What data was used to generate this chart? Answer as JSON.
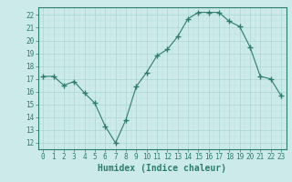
{
  "x": [
    0,
    1,
    2,
    3,
    4,
    5,
    6,
    7,
    8,
    9,
    10,
    11,
    12,
    13,
    14,
    15,
    16,
    17,
    18,
    19,
    20,
    21,
    22,
    23
  ],
  "y": [
    17.2,
    17.2,
    16.5,
    16.8,
    15.9,
    15.1,
    13.3,
    12.0,
    13.8,
    16.4,
    17.5,
    18.8,
    19.3,
    20.3,
    21.7,
    22.2,
    22.2,
    22.2,
    21.5,
    21.1,
    19.5,
    17.2,
    17.0,
    15.7
  ],
  "line_color": "#2d7d6e",
  "marker": "+",
  "marker_size": 4,
  "marker_linewidth": 1.0,
  "bg_color": "#cceaea",
  "grid_major_color": "#aad4d4",
  "grid_minor_color": "#bbdede",
  "tick_color": "#2d7d6e",
  "spine_color": "#2d7d6e",
  "xlabel": "Humidex (Indice chaleur)",
  "xlabel_fontsize": 7,
  "tick_fontsize": 5.5,
  "ylim": [
    11.5,
    22.6
  ],
  "xlim": [
    -0.5,
    23.5
  ],
  "yticks": [
    12,
    13,
    14,
    15,
    16,
    17,
    18,
    19,
    20,
    21,
    22
  ],
  "xticks": [
    0,
    1,
    2,
    3,
    4,
    5,
    6,
    7,
    8,
    9,
    10,
    11,
    12,
    13,
    14,
    15,
    16,
    17,
    18,
    19,
    20,
    21,
    22,
    23
  ]
}
